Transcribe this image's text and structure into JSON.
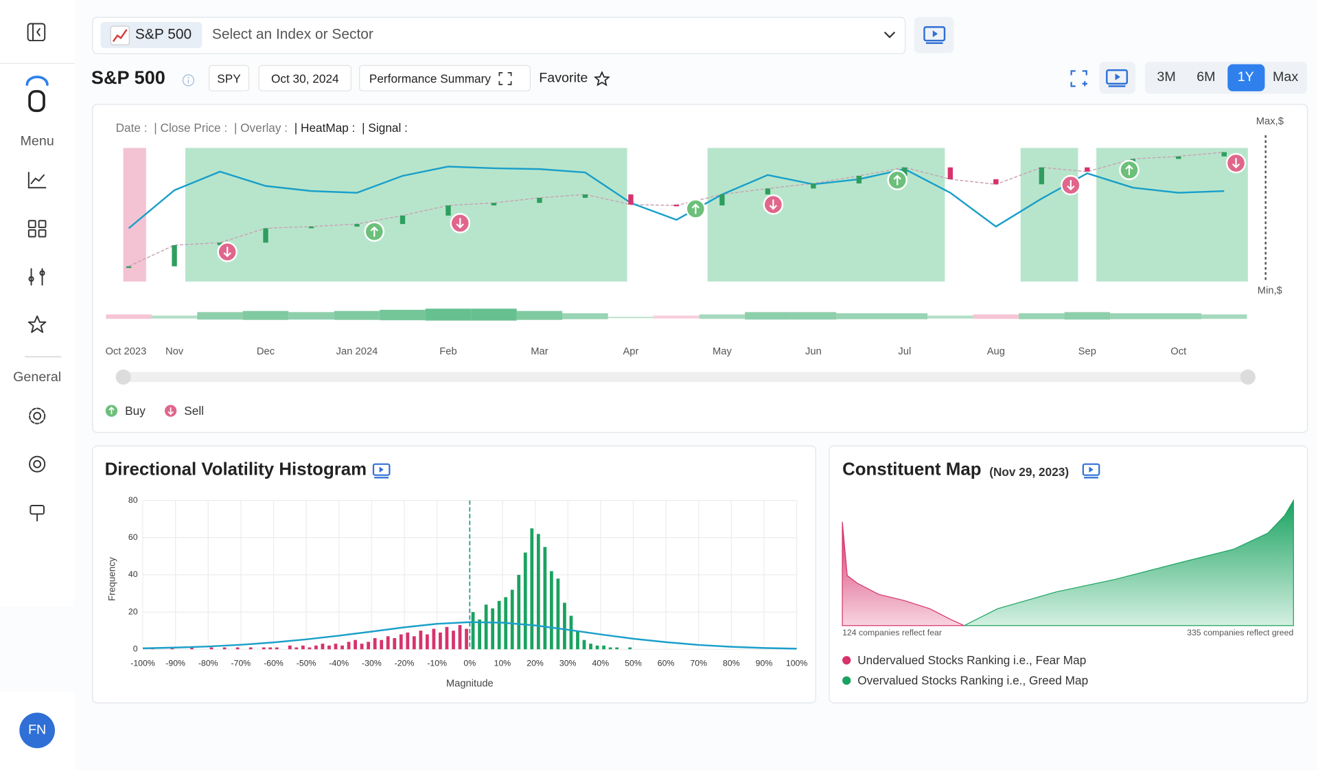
{
  "sidebar": {
    "menu_label": "Menu",
    "general_label": "General",
    "avatar": "FN"
  },
  "header": {
    "selected": "S&P 500",
    "placeholder": "Select an Index or Sector",
    "title": "S&P 500",
    "ticker": "SPY",
    "date": "Oct 30, 2024",
    "summary": "Performance Summary",
    "favorite": "Favorite",
    "ranges": [
      "3M",
      "6M",
      "1Y",
      "Max"
    ],
    "active_range_index": 2
  },
  "chart_data": [
    {
      "type": "candlestick",
      "labels": [
        "Date :",
        "| Close Price :",
        "| Overlay :",
        "| HeatMap :",
        "| Signal :"
      ],
      "xlim": [
        0.45,
        12.76
      ],
      "xticks": [
        {
          "value": 0.45,
          "label": "Oct 2023"
        },
        {
          "value": 1,
          "label": "Nov"
        },
        {
          "value": 2,
          "label": "Dec"
        },
        {
          "value": 3,
          "label": "Jan 2024"
        },
        {
          "value": 4,
          "label": "Feb"
        },
        {
          "value": 5,
          "label": "Mar"
        },
        {
          "value": 6,
          "label": "Apr"
        },
        {
          "value": 7,
          "label": "May"
        },
        {
          "value": 8,
          "label": "Jun"
        },
        {
          "value": 9,
          "label": "Jul"
        },
        {
          "value": 10,
          "label": "Aug"
        },
        {
          "value": 11,
          "label": "Sep"
        },
        {
          "value": 12,
          "label": "Oct"
        }
      ],
      "ylim": [
        0,
        100
      ],
      "yticks": [
        {
          "value": 100,
          "label": "Max,$"
        },
        {
          "value": 0,
          "label": "Min,$"
        }
      ],
      "x": [
        0.5,
        1,
        1.5,
        2,
        2.5,
        3,
        3.5,
        4,
        4.5,
        5,
        5.5,
        6,
        6.5,
        7,
        7.5,
        8,
        8.5,
        9,
        9.5,
        10,
        10.5,
        11,
        11.5,
        12,
        12.5
      ],
      "series": [
        {
          "up_color": "#2e9e5e",
          "down_color": "#d6336c",
          "values": [
            14.5,
            27,
            28.5,
            37,
            38,
            39.5,
            44.5,
            50.5,
            52,
            55,
            57,
            51,
            50.5,
            57,
            60.5,
            63.5,
            68,
            73,
            66,
            63,
            73,
            70.5,
            78,
            79.5,
            82
          ]
        },
        {
          "color": "#1a9fc9",
          "values": [
            37,
            59.5,
            70.5,
            62,
            59,
            58,
            68,
            73.5,
            72.5,
            72,
            70,
            52,
            42,
            57,
            68.5,
            63,
            66,
            72,
            58,
            38,
            54.5,
            69.5,
            61,
            58,
            59
          ]
        }
      ],
      "heat": [
        -3,
        2,
        5,
        6,
        5,
        6,
        7,
        8,
        8,
        6,
        4,
        1,
        -2,
        3,
        5,
        5,
        4,
        4,
        2,
        -3,
        4,
        5,
        4,
        4,
        3
      ],
      "heat_lim": [
        -10,
        10
      ],
      "heat_colors": {
        "positive": "#2fa866",
        "negative": "#e8799d"
      },
      "zones": [
        {
          "start": 0.44,
          "end": 0.69,
          "color": "#f3c3d3"
        },
        {
          "start": 1.12,
          "end": 5.96,
          "color": "#b7e5cc"
        },
        {
          "start": 6.84,
          "end": 9.44,
          "color": "#b7e5cc"
        },
        {
          "start": 10.27,
          "end": 10.9,
          "color": "#b7e5cc"
        },
        {
          "start": 11.1,
          "end": 12.76,
          "color": "#b7e5cc"
        }
      ],
      "signals": [
        {
          "name": "Buy",
          "color": "#6cc07a",
          "x": [
            3.19,
            6.71,
            8.92,
            11.46
          ],
          "values": [
            35,
            48.5,
            65.5,
            71.5
          ]
        },
        {
          "name": "Sell",
          "color": "#e0668c",
          "x": [
            1.58,
            4.13,
            7.56,
            10.82,
            12.63
          ],
          "values": [
            23,
            40,
            51,
            62.5,
            75.5
          ]
        }
      ]
    },
    {
      "type": "histogram",
      "title": "Directional Volatility Histogram",
      "xlabel": "Magnitude",
      "ylabel": "Frequency",
      "xlim": [
        -100,
        100
      ],
      "ylim": [
        0,
        80
      ],
      "yticks": [
        0,
        20,
        40,
        60,
        80
      ],
      "xticks": [
        {
          "value": -100,
          "label": "-100%"
        },
        {
          "value": -90,
          "label": "-90%"
        },
        {
          "value": -80,
          "label": "-80%"
        },
        {
          "value": -70,
          "label": "-70%"
        },
        {
          "value": -60,
          "label": "-60%"
        },
        {
          "value": -50,
          "label": "-50%"
        },
        {
          "value": -40,
          "label": "-40%"
        },
        {
          "value": -30,
          "label": "-30%"
        },
        {
          "value": -20,
          "label": "-20%"
        },
        {
          "value": -10,
          "label": "-10%"
        },
        {
          "value": 0,
          "label": "0%"
        },
        {
          "value": 10,
          "label": "10%"
        },
        {
          "value": 20,
          "label": "20%"
        },
        {
          "value": 30,
          "label": "30%"
        },
        {
          "value": 40,
          "label": "40%"
        },
        {
          "value": 50,
          "label": "50%"
        },
        {
          "value": 60,
          "label": "60%"
        },
        {
          "value": 70,
          "label": "70%"
        },
        {
          "value": 80,
          "label": "80%"
        },
        {
          "value": 90,
          "label": "90%"
        },
        {
          "value": 100,
          "label": "100%"
        }
      ],
      "bins": [
        -100,
        -98,
        -96,
        -94,
        -92,
        -90,
        -88,
        -86,
        -84,
        -82,
        -80,
        -78,
        -76,
        -74,
        -72,
        -70,
        -68,
        -66,
        -64,
        -62,
        -60,
        -58,
        -56,
        -54,
        -52,
        -50,
        -48,
        -46,
        -44,
        -42,
        -40,
        -38,
        -36,
        -34,
        -32,
        -30,
        -28,
        -26,
        -24,
        -22,
        -20,
        -18,
        -16,
        -14,
        -12,
        -10,
        -8,
        -6,
        -4,
        -2,
        0,
        2,
        4,
        6,
        8,
        10,
        12,
        14,
        16,
        18,
        20,
        22,
        24,
        26,
        28,
        30,
        32,
        34,
        36,
        38,
        40,
        42,
        44,
        46,
        48,
        50,
        52,
        54,
        56,
        58,
        60,
        62,
        64,
        66,
        68,
        70,
        72,
        74,
        76,
        78,
        80,
        82,
        84,
        86,
        88,
        90,
        92,
        94,
        96,
        98,
        100
      ],
      "counts": [
        0,
        1,
        0,
        0,
        1,
        0,
        0,
        1,
        0,
        0,
        1,
        0,
        1,
        0,
        1,
        0,
        1,
        0,
        1,
        1,
        1,
        0,
        2,
        1,
        2,
        1,
        2,
        3,
        2,
        3,
        2,
        4,
        5,
        3,
        4,
        6,
        5,
        7,
        6,
        8,
        9,
        7,
        10,
        8,
        11,
        9,
        12,
        10,
        13,
        11,
        20,
        16,
        24,
        22,
        26,
        28,
        32,
        40,
        52,
        65,
        62,
        55,
        42,
        38,
        25,
        18,
        10,
        5,
        3,
        2,
        2,
        1,
        1,
        0,
        1,
        0,
        0,
        0,
        0,
        0,
        0,
        0,
        0,
        0,
        0,
        0,
        0,
        0,
        0,
        0,
        0,
        0,
        0,
        0,
        0,
        0,
        0,
        0,
        0,
        0
      ],
      "colors": {
        "negative": "#d6336c",
        "positive": "#1aa260"
      },
      "reference_x": 0,
      "reference_color": "#2a9d8f",
      "curve": {
        "color": "#1a9fc9",
        "x": [
          -100,
          -90,
          -80,
          -70,
          -60,
          -50,
          -40,
          -30,
          -20,
          -10,
          0,
          10,
          20,
          30,
          40,
          50,
          60,
          70,
          80,
          90,
          100
        ],
        "values": [
          0.5,
          0.9,
          1.5,
          2.4,
          3.7,
          5.3,
          7.3,
          9.5,
          11.8,
          13.7,
          14.6,
          14.3,
          12.8,
          10.5,
          8,
          5.7,
          3.8,
          2.3,
          1.3,
          0.7,
          0.3
        ]
      },
      "grid": true
    },
    {
      "type": "area",
      "title": "Constituent Map",
      "subtitle": "(Nov 29, 2023)",
      "xlim": [
        0,
        459
      ],
      "ylim": [
        0,
        100
      ],
      "series": [
        {
          "name": "Undervalued Stocks Ranking i.e., Fear Map",
          "color": "#d6336c",
          "x": [
            0,
            5,
            15,
            37,
            63,
            89,
            110,
            124
          ],
          "values": [
            83,
            40,
            34,
            25,
            20,
            13.5,
            5,
            0
          ]
        },
        {
          "name": "Overvalued Stocks Ranking i.e., Greed Map",
          "color": "#1aa260",
          "x": [
            124,
            158,
            218,
            278,
            347,
            398,
            433,
            450,
            459
          ],
          "values": [
            0,
            13.5,
            27,
            37,
            51,
            61,
            74,
            88,
            100
          ]
        }
      ],
      "annotations": [
        "124 companies reflect fear",
        "335 companies reflect greed"
      ]
    }
  ]
}
